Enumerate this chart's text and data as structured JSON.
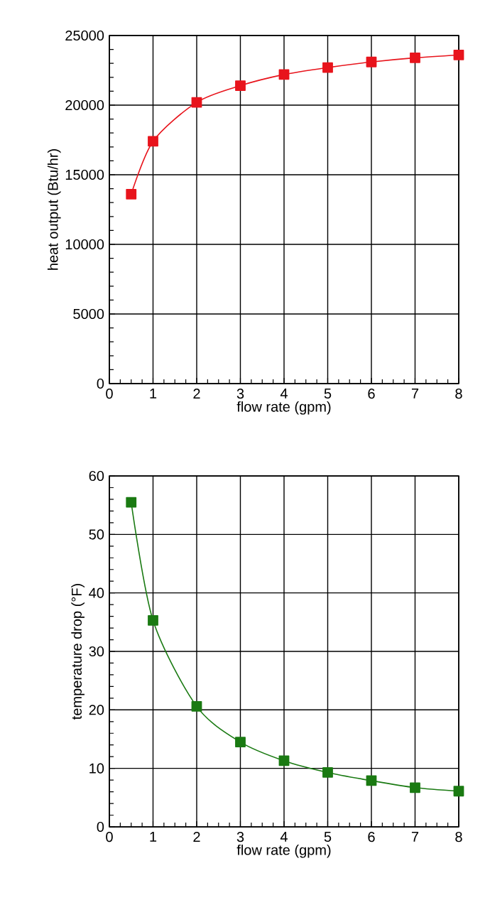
{
  "chart_data": [
    {
      "type": "line",
      "xlabel": "flow rate (gpm)",
      "ylabel": "heat output (Btu/hr)",
      "x": [
        0.5,
        1,
        2,
        3,
        4,
        5,
        6,
        7,
        8
      ],
      "series": [
        {
          "color": "#e8141c",
          "values": [
            13600,
            17400,
            20200,
            21400,
            22200,
            22700,
            23100,
            23400,
            23600
          ]
        }
      ],
      "xlim": [
        0,
        8
      ],
      "ylim": [
        0,
        25000
      ],
      "xticks": [
        0,
        1,
        2,
        3,
        4,
        5,
        6,
        7,
        8
      ],
      "yticks": [
        0,
        5000,
        10000,
        15000,
        20000,
        25000
      ],
      "grid": true,
      "marker": "square",
      "line_style": "solid"
    },
    {
      "type": "line",
      "xlabel": "flow rate (gpm)",
      "ylabel": "temperature drop (°F)",
      "x": [
        0.5,
        1,
        2,
        3,
        4,
        5,
        6,
        7,
        8
      ],
      "series": [
        {
          "color": "#1a7a12",
          "values": [
            55.5,
            35.3,
            20.6,
            14.5,
            11.3,
            9.3,
            7.9,
            6.7,
            6.1
          ]
        }
      ],
      "xlim": [
        0,
        8
      ],
      "ylim": [
        0,
        60
      ],
      "xticks": [
        0,
        1,
        2,
        3,
        4,
        5,
        6,
        7,
        8
      ],
      "yticks": [
        0,
        10,
        20,
        30,
        40,
        50,
        60
      ],
      "grid": true,
      "marker": "square",
      "line_style": "solid"
    }
  ]
}
